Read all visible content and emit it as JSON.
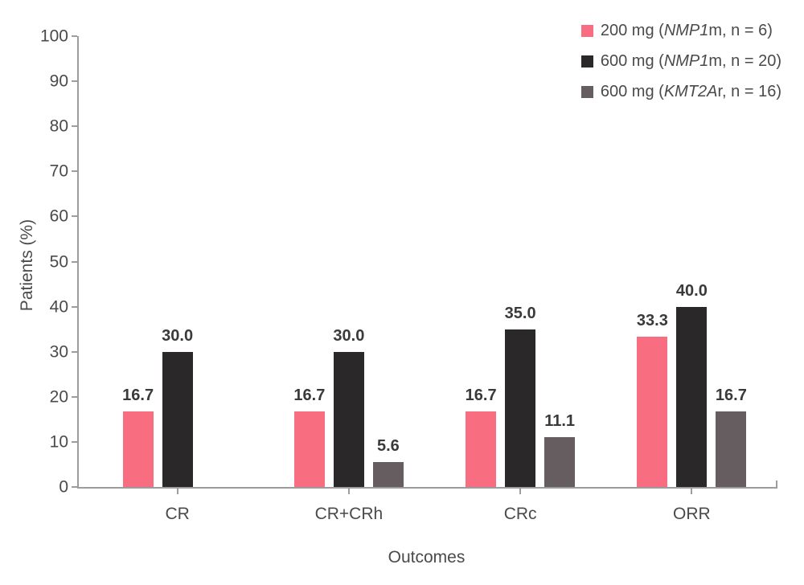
{
  "chart_data": {
    "type": "bar",
    "categories": [
      "CR",
      "CR+CRh",
      "CRc",
      "ORR"
    ],
    "series": [
      {
        "name": "200 mg (NMP1m, n = 6)",
        "color": "#F96D80",
        "values": [
          16.7,
          16.7,
          16.7,
          33.3
        ]
      },
      {
        "name": "600 mg (NMP1m, n = 20)",
        "color": "#2B2829",
        "values": [
          30.0,
          30.0,
          35.0,
          40.0
        ]
      },
      {
        "name": "600 mg (KMT2Ar, n = 16)",
        "color": "#665D60",
        "values": [
          0,
          5.6,
          11.1,
          16.7
        ]
      }
    ],
    "xlabel": "Outcomes",
    "ylabel": "Patients (%)",
    "ylim": [
      0,
      100
    ],
    "ytick_step": 10,
    "grid": false,
    "legend_position": "top-right",
    "value_label_format": "one decimal above each bar; zero values show no bar and no label"
  },
  "legend": {
    "items": [
      {
        "prefix": "200 mg (",
        "gene": "NMP1",
        "suffix": "m, n = 6)",
        "color": "#F96D80"
      },
      {
        "prefix": "600 mg (",
        "gene": "NMP1",
        "suffix": "m, n = 20)",
        "color": "#2B2829"
      },
      {
        "prefix": "600 mg (",
        "gene": "KMT2A",
        "suffix": "r, n = 16)",
        "color": "#665D60"
      }
    ]
  },
  "colors": {
    "axis": "#9C9C9C",
    "text": "#4A4A4A",
    "value_label": "#3A3A3A",
    "background": "#FFFFFF"
  }
}
